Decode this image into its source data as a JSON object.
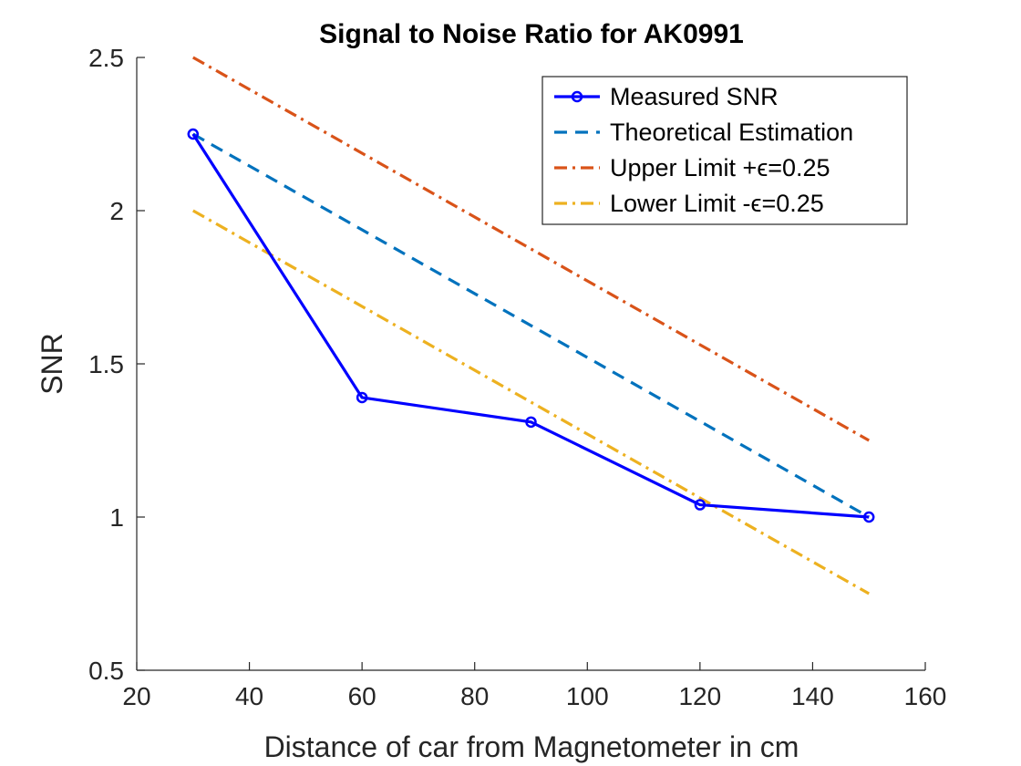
{
  "chart_data": {
    "type": "line",
    "title": "Signal to Noise Ratio for AK0991",
    "xlabel": "Distance of car from Magnetometer in cm",
    "ylabel": "SNR",
    "xlim": [
      20,
      160
    ],
    "ylim": [
      0.5,
      2.5
    ],
    "xticks": [
      20,
      40,
      60,
      80,
      100,
      120,
      140,
      160
    ],
    "yticks": [
      0.5,
      1,
      1.5,
      2,
      2.5
    ],
    "xtick_labels": [
      "20",
      "40",
      "60",
      "80",
      "100",
      "120",
      "140",
      "160"
    ],
    "ytick_labels": [
      "0.5",
      "1",
      "1.5",
      "2",
      "2.5"
    ],
    "grid": false,
    "legend_position": "top-right",
    "series": [
      {
        "name": "Measured SNR",
        "x": [
          30,
          60,
          90,
          120,
          150
        ],
        "y": [
          2.25,
          1.39,
          1.31,
          1.04,
          1.0
        ],
        "color": "#0000FF",
        "line_style": "solid",
        "marker": "circle"
      },
      {
        "name": "Theoretical Estimation",
        "x": [
          30,
          150
        ],
        "y": [
          2.25,
          1.0
        ],
        "color": "#0072BD",
        "line_style": "dashed",
        "marker": "none"
      },
      {
        "name": "Upper Limit +ϵ=0.25",
        "x": [
          30,
          150
        ],
        "y": [
          2.5,
          1.25
        ],
        "color": "#D95319",
        "line_style": "dash-dot",
        "marker": "none"
      },
      {
        "name": "Lower Limit -ϵ=0.25",
        "x": [
          30,
          150
        ],
        "y": [
          2.0,
          0.75
        ],
        "color": "#EDB120",
        "line_style": "dash-dot",
        "marker": "none"
      }
    ]
  }
}
